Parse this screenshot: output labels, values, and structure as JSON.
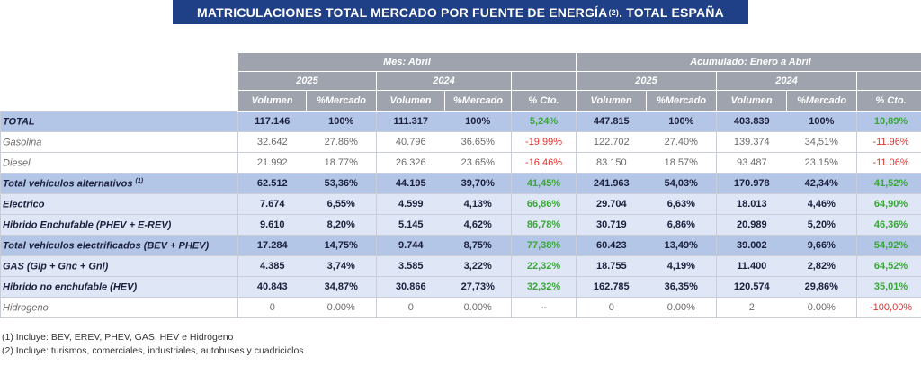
{
  "title": {
    "main": "MATRICULACIONES TOTAL MERCADO POR FUENTE DE ENERGÍA",
    "sup": "(2)",
    "tail": ". TOTAL ESPAÑA"
  },
  "header": {
    "mes": "Mes: Abril",
    "acum": "Acumulado: Enero a Abril",
    "y2025": "2025",
    "y2024": "2024",
    "volumen": "Volumen",
    "mercado": "%Mercado",
    "cto": "% Cto."
  },
  "rows": [
    {
      "label": "TOTAL",
      "sup": "",
      "v1": "117.146",
      "m1": "100%",
      "v2": "111.317",
      "m2": "100%",
      "c1": "5,24%",
      "v3": "447.815",
      "m3": "100%",
      "v4": "403.839",
      "m4": "100%",
      "c2": "10,89%"
    },
    {
      "label": "Gasolina",
      "sup": "",
      "v1": "32.642",
      "m1": "27.86%",
      "v2": "40.796",
      "m2": "36.65%",
      "c1": "-19,99%",
      "v3": "122.702",
      "m3": "27.40%",
      "v4": "139.374",
      "m4": "34,51%",
      "c2": "-11.96%"
    },
    {
      "label": "Diesel",
      "sup": "",
      "v1": "21.992",
      "m1": "18.77%",
      "v2": "26.326",
      "m2": "23.65%",
      "c1": "-16,46%",
      "v3": "83.150",
      "m3": "18.57%",
      "v4": "93.487",
      "m4": "23.15%",
      "c2": "-11.06%"
    },
    {
      "label": "Total vehículos alternativos",
      "sup": "(1)",
      "v1": "62.512",
      "m1": "53,36%",
      "v2": "44.195",
      "m2": "39,70%",
      "c1": "41,45%",
      "v3": "241.963",
      "m3": "54,03%",
      "v4": "170.978",
      "m4": "42,34%",
      "c2": "41,52%"
    },
    {
      "label": "Electrico",
      "sup": "",
      "v1": "7.674",
      "m1": "6,55%",
      "v2": "4.599",
      "m2": "4,13%",
      "c1": "66,86%",
      "v3": "29.704",
      "m3": "6,63%",
      "v4": "18.013",
      "m4": "4,46%",
      "c2": "64,90%"
    },
    {
      "label": "Hibrido Enchufable (PHEV + E-REV)",
      "sup": "",
      "v1": "9.610",
      "m1": "8,20%",
      "v2": "5.145",
      "m2": "4,62%",
      "c1": "86,78%",
      "v3": "30.719",
      "m3": "6,86%",
      "v4": "20.989",
      "m4": "5,20%",
      "c2": "46,36%"
    },
    {
      "label": "Total vehículos electrificados (BEV + PHEV)",
      "sup": "",
      "v1": "17.284",
      "m1": "14,75%",
      "v2": "9.744",
      "m2": "8,75%",
      "c1": "77,38%",
      "v3": "60.423",
      "m3": "13,49%",
      "v4": "39.002",
      "m4": "9,66%",
      "c2": "54,92%"
    },
    {
      "label": "GAS (Glp + Gnc + Gnl)",
      "sup": "",
      "v1": "4.385",
      "m1": "3,74%",
      "v2": "3.585",
      "m2": "3,22%",
      "c1": "22,32%",
      "v3": "18.755",
      "m3": "4,19%",
      "v4": "11.400",
      "m4": "2,82%",
      "c2": "64,52%"
    },
    {
      "label": "Hibrido no enchufable (HEV)",
      "sup": "",
      "v1": "40.843",
      "m1": "34,87%",
      "v2": "30.866",
      "m2": "27,73%",
      "c1": "32,32%",
      "v3": "162.785",
      "m3": "36,35%",
      "v4": "120.574",
      "m4": "29,86%",
      "c2": "35,01%"
    },
    {
      "label": "Hidrogeno",
      "sup": "",
      "v1": "0",
      "m1": "0.00%",
      "v2": "0",
      "m2": "0.00%",
      "c1": "--",
      "v3": "0",
      "m3": "0.00%",
      "v4": "2",
      "m4": "0.00%",
      "c2": "-100,00%"
    }
  ],
  "notes": {
    "n1": "(1) Incluye: BEV, EREV, PHEV, GAS, HEV e Hidrógeno",
    "n2": "(2) Incluye: turismos, comerciales, industriales, autobuses y cuadriciclos"
  }
}
